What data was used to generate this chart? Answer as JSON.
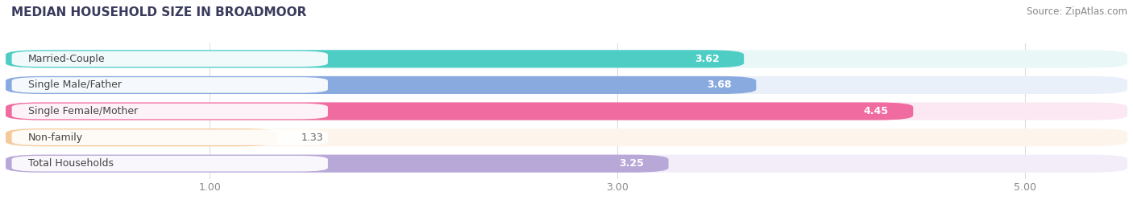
{
  "title": "MEDIAN HOUSEHOLD SIZE IN BROADMOOR",
  "source": "Source: ZipAtlas.com",
  "categories": [
    "Married-Couple",
    "Single Male/Father",
    "Single Female/Mother",
    "Non-family",
    "Total Households"
  ],
  "values": [
    3.62,
    3.68,
    4.45,
    1.33,
    3.25
  ],
  "bar_colors": [
    "#4ecdc4",
    "#89aadf",
    "#f06ca0",
    "#f5c99a",
    "#b8a8d8"
  ],
  "bar_bg_colors": [
    "#eaf7f7",
    "#eaf0fa",
    "#fce8f2",
    "#fdf5ec",
    "#f2edf8"
  ],
  "xlim_left": 0.0,
  "xlim_right": 5.5,
  "xticks": [
    1.0,
    3.0,
    5.0
  ],
  "xtick_labels": [
    "1.00",
    "3.00",
    "5.00"
  ],
  "title_fontsize": 11,
  "source_fontsize": 8.5,
  "label_fontsize": 9,
  "value_fontsize": 9,
  "background_color": "#ffffff",
  "grid_color": "#dddddd",
  "label_bg_color": "#ffffff",
  "label_text_color": "#444444",
  "value_color_inside": "#ffffff",
  "value_color_outside": "#666666"
}
